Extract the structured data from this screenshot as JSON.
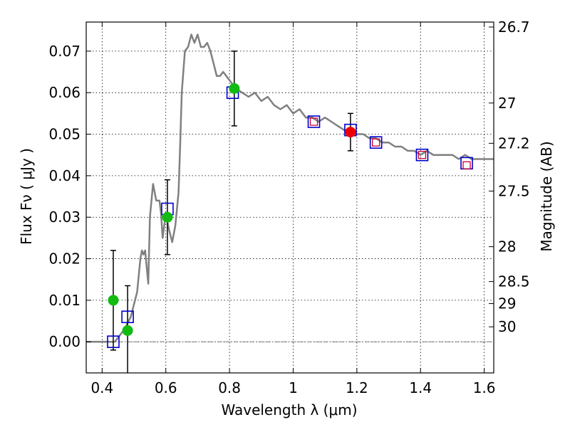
{
  "chart_data": {
    "type": "scatter",
    "xlabel": "Wavelength  λ (μm)",
    "ylabel": "Flux  Fν  ( μJy )",
    "y2label": "Magnitude (AB)",
    "xlim": [
      0.35,
      1.63
    ],
    "ylim": [
      -0.0075,
      0.077
    ],
    "x_ticks": [
      0.4,
      0.6,
      0.8,
      1.0,
      1.2,
      1.4,
      1.6
    ],
    "x_tick_labels": [
      "0.4",
      "0.6",
      "0.8",
      "1",
      "1.2",
      "1.4",
      "1.6"
    ],
    "y_ticks": [
      0.0,
      0.01,
      0.02,
      0.03,
      0.04,
      0.05,
      0.06,
      0.07
    ],
    "y_tick_labels": [
      "0.00",
      "0.01",
      "0.02",
      "0.03",
      "0.04",
      "0.05",
      "0.06",
      "0.07"
    ],
    "y2_ticks": [
      {
        "label": "26.7",
        "flux": 0.0758
      },
      {
        "label": "27",
        "flux": 0.0575
      },
      {
        "label": "27.2",
        "flux": 0.0478
      },
      {
        "label": "27.5",
        "flux": 0.0363
      },
      {
        "label": "28",
        "flux": 0.0229
      },
      {
        "label": "28.5",
        "flux": 0.0145
      },
      {
        "label": "29",
        "flux": 0.0092
      },
      {
        "label": "30",
        "flux": 0.0036
      }
    ],
    "zero_line": 0.0,
    "series": [
      {
        "name": "model-spectrum",
        "kind": "line",
        "color": "#808080",
        "points": [
          [
            0.35,
            0.0
          ],
          [
            0.44,
            0.0
          ],
          [
            0.45,
            0.001
          ],
          [
            0.47,
            0.003
          ],
          [
            0.49,
            0.006
          ],
          [
            0.5,
            0.009
          ],
          [
            0.51,
            0.012
          ],
          [
            0.52,
            0.02
          ],
          [
            0.525,
            0.022
          ],
          [
            0.53,
            0.021
          ],
          [
            0.535,
            0.022
          ],
          [
            0.54,
            0.018
          ],
          [
            0.545,
            0.014
          ],
          [
            0.55,
            0.03
          ],
          [
            0.56,
            0.038
          ],
          [
            0.57,
            0.034
          ],
          [
            0.58,
            0.034
          ],
          [
            0.585,
            0.031
          ],
          [
            0.59,
            0.025
          ],
          [
            0.6,
            0.031
          ],
          [
            0.61,
            0.027
          ],
          [
            0.62,
            0.024
          ],
          [
            0.63,
            0.028
          ],
          [
            0.64,
            0.036
          ],
          [
            0.645,
            0.047
          ],
          [
            0.65,
            0.06
          ],
          [
            0.66,
            0.07
          ],
          [
            0.67,
            0.071
          ],
          [
            0.68,
            0.074
          ],
          [
            0.69,
            0.072
          ],
          [
            0.7,
            0.074
          ],
          [
            0.71,
            0.071
          ],
          [
            0.72,
            0.071
          ],
          [
            0.73,
            0.072
          ],
          [
            0.74,
            0.07
          ],
          [
            0.75,
            0.067
          ],
          [
            0.76,
            0.064
          ],
          [
            0.77,
            0.064
          ],
          [
            0.78,
            0.065
          ],
          [
            0.8,
            0.063
          ],
          [
            0.82,
            0.061
          ],
          [
            0.84,
            0.06
          ],
          [
            0.86,
            0.059
          ],
          [
            0.88,
            0.06
          ],
          [
            0.9,
            0.058
          ],
          [
            0.92,
            0.059
          ],
          [
            0.94,
            0.057
          ],
          [
            0.96,
            0.056
          ],
          [
            0.98,
            0.057
          ],
          [
            1.0,
            0.055
          ],
          [
            1.02,
            0.056
          ],
          [
            1.04,
            0.054
          ],
          [
            1.06,
            0.054
          ],
          [
            1.08,
            0.053
          ],
          [
            1.1,
            0.054
          ],
          [
            1.12,
            0.053
          ],
          [
            1.14,
            0.052
          ],
          [
            1.16,
            0.051
          ],
          [
            1.18,
            0.051
          ],
          [
            1.2,
            0.05
          ],
          [
            1.22,
            0.05
          ],
          [
            1.24,
            0.049
          ],
          [
            1.26,
            0.049
          ],
          [
            1.28,
            0.048
          ],
          [
            1.3,
            0.048
          ],
          [
            1.32,
            0.047
          ],
          [
            1.34,
            0.047
          ],
          [
            1.36,
            0.046
          ],
          [
            1.38,
            0.046
          ],
          [
            1.4,
            0.045
          ],
          [
            1.42,
            0.046
          ],
          [
            1.44,
            0.045
          ],
          [
            1.46,
            0.045
          ],
          [
            1.48,
            0.045
          ],
          [
            1.5,
            0.045
          ],
          [
            1.52,
            0.044
          ],
          [
            1.54,
            0.045
          ],
          [
            1.56,
            0.044
          ],
          [
            1.58,
            0.044
          ],
          [
            1.6,
            0.044
          ],
          [
            1.63,
            0.044
          ]
        ]
      },
      {
        "name": "model-broadband",
        "kind": "open-square",
        "color": "#0000cc",
        "points": [
          [
            0.435,
            0.0
          ],
          [
            0.48,
            0.006
          ],
          [
            0.605,
            0.032
          ],
          [
            0.81,
            0.06
          ],
          [
            1.065,
            0.053
          ],
          [
            1.18,
            0.051
          ],
          [
            1.26,
            0.048
          ],
          [
            1.405,
            0.045
          ],
          [
            1.545,
            0.043
          ]
        ]
      },
      {
        "name": "observed-filled",
        "kind": "filled-circle",
        "color": "#11bb11",
        "points": [
          [
            0.435,
            0.01
          ],
          [
            0.48,
            0.0027
          ],
          [
            0.605,
            0.03
          ],
          [
            0.815,
            0.061
          ]
        ]
      },
      {
        "name": "observed-errors",
        "kind": "errorbar",
        "color": "#000000",
        "points": [
          [
            0.435,
            -0.002,
            0.022
          ],
          [
            0.48,
            -0.008,
            0.0135
          ],
          [
            0.605,
            0.021,
            0.039
          ],
          [
            0.815,
            0.052,
            0.07
          ],
          [
            1.18,
            0.046,
            0.055
          ]
        ]
      },
      {
        "name": "observed-red",
        "kind": "red-circle",
        "color": "#ee0000",
        "points": [
          [
            1.18,
            0.0505
          ]
        ]
      },
      {
        "name": "observed-small-squares",
        "kind": "small-open-square",
        "color": "#cc0033",
        "points": [
          [
            1.065,
            0.053
          ],
          [
            1.26,
            0.048
          ],
          [
            1.405,
            0.045
          ],
          [
            1.545,
            0.0425
          ]
        ]
      }
    ]
  }
}
